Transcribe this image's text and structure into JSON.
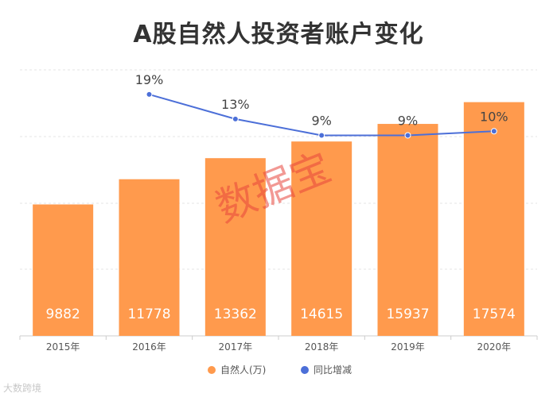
{
  "title": "A股自然人投资者账户变化",
  "watermark": "数据宝",
  "footer_logo": "大数跨境",
  "colors": {
    "bar": "#FF9A4D",
    "line": "#4C6FD8",
    "grid": "#e6e6e6",
    "watermark": "#E8453C"
  },
  "chart_data": {
    "type": "bar",
    "title": "A股自然人投资者账户变化",
    "categories": [
      "2015年",
      "2016年",
      "2017年",
      "2018年",
      "2019年",
      "2020年"
    ],
    "series": [
      {
        "name": "自然人(万)",
        "type": "bar",
        "values": [
          9882,
          11778,
          13362,
          14615,
          15937,
          17574
        ],
        "labels": [
          "9882",
          "11778",
          "13362",
          "14615",
          "15937",
          "17574"
        ]
      },
      {
        "name": "同比增减",
        "type": "line",
        "values": [
          null,
          19,
          13,
          9,
          9,
          10
        ],
        "labels": [
          "",
          "19%",
          "13%",
          "9%",
          "9%",
          "10%"
        ]
      }
    ],
    "bar_ylim": [
      0,
      20000
    ],
    "line_ylim": [
      -40,
      25
    ],
    "legend_position": "bottom-center",
    "grid": true
  }
}
